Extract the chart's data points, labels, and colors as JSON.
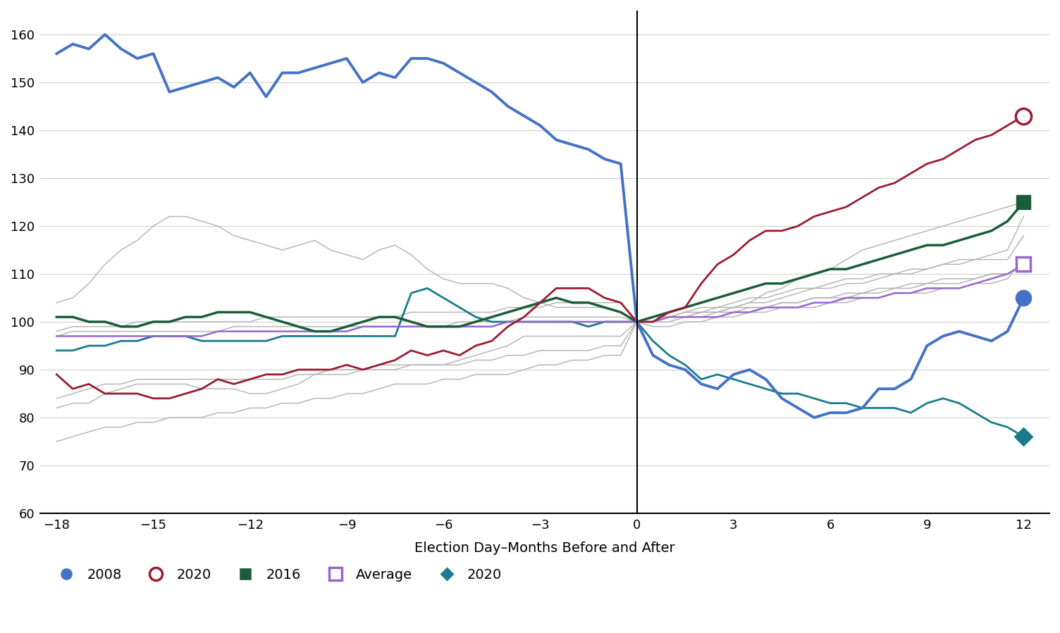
{
  "xlabel": "Election Day–Months Before and After",
  "xlim": [
    -18.5,
    12.8
  ],
  "ylim": [
    60,
    165
  ],
  "xticks": [
    -18,
    -15,
    -12,
    -9,
    -6,
    -3,
    0,
    3,
    6,
    9,
    12
  ],
  "yticks": [
    60,
    70,
    80,
    90,
    100,
    110,
    120,
    130,
    140,
    150,
    160
  ],
  "vline_x": 0,
  "background_color": "#ffffff",
  "grid_color": "#d0d0d0",
  "series_2008_color": "#4472c4",
  "series_2020_crimson_color": "#9b1b30",
  "series_2016_color": "#1a5c38",
  "series_average_color": "#9966cc",
  "series_2020_teal_color": "#1a7b8a",
  "series_gray_color": "#b0b0b0",
  "series_2008": {
    "x": [
      -18,
      -17.5,
      -17,
      -16.5,
      -16,
      -15.5,
      -15,
      -14.5,
      -14,
      -13.5,
      -13,
      -12.5,
      -12,
      -11.5,
      -11,
      -10.5,
      -10,
      -9.5,
      -9,
      -8.5,
      -8,
      -7.5,
      -7,
      -6.5,
      -6,
      -5.5,
      -5,
      -4.5,
      -4,
      -3.5,
      -3,
      -2.5,
      -2,
      -1.5,
      -1,
      -0.5,
      0,
      0.5,
      1,
      1.5,
      2,
      2.5,
      3,
      3.5,
      4,
      4.5,
      5,
      5.5,
      6,
      6.5,
      7,
      7.5,
      8,
      8.5,
      9,
      9.5,
      10,
      10.5,
      11,
      11.5,
      12
    ],
    "y": [
      156,
      158,
      157,
      160,
      157,
      155,
      156,
      148,
      149,
      150,
      151,
      149,
      152,
      147,
      152,
      152,
      153,
      154,
      155,
      150,
      152,
      151,
      155,
      155,
      154,
      152,
      150,
      148,
      145,
      143,
      141,
      138,
      137,
      136,
      134,
      133,
      100,
      93,
      91,
      90,
      87,
      86,
      89,
      90,
      88,
      84,
      82,
      80,
      81,
      81,
      82,
      86,
      86,
      88,
      95,
      97,
      98,
      97,
      96,
      98,
      105
    ]
  },
  "series_2020_crimson": {
    "x": [
      -18,
      -17.5,
      -17,
      -16.5,
      -16,
      -15.5,
      -15,
      -14.5,
      -14,
      -13.5,
      -13,
      -12.5,
      -12,
      -11.5,
      -11,
      -10.5,
      -10,
      -9.5,
      -9,
      -8.5,
      -8,
      -7.5,
      -7,
      -6.5,
      -6,
      -5.5,
      -5,
      -4.5,
      -4,
      -3.5,
      -3,
      -2.5,
      -2,
      -1.5,
      -1,
      -0.5,
      0,
      0.5,
      1,
      1.5,
      2,
      2.5,
      3,
      3.5,
      4,
      4.5,
      5,
      5.5,
      6,
      6.5,
      7,
      7.5,
      8,
      8.5,
      9,
      9.5,
      10,
      10.5,
      11,
      11.5,
      12
    ],
    "y": [
      89,
      86,
      87,
      85,
      85,
      85,
      84,
      84,
      85,
      86,
      88,
      87,
      88,
      89,
      89,
      90,
      90,
      90,
      91,
      90,
      91,
      92,
      94,
      93,
      94,
      93,
      95,
      96,
      99,
      101,
      104,
      107,
      107,
      107,
      105,
      104,
      100,
      100,
      102,
      103,
      108,
      112,
      114,
      117,
      119,
      119,
      120,
      122,
      123,
      124,
      126,
      128,
      129,
      131,
      133,
      134,
      136,
      138,
      139,
      141,
      143
    ]
  },
  "series_2016": {
    "x": [
      -18,
      -17.5,
      -17,
      -16.5,
      -16,
      -15.5,
      -15,
      -14.5,
      -14,
      -13.5,
      -13,
      -12.5,
      -12,
      -11.5,
      -11,
      -10.5,
      -10,
      -9.5,
      -9,
      -8.5,
      -8,
      -7.5,
      -7,
      -6.5,
      -6,
      -5.5,
      -5,
      -4.5,
      -4,
      -3.5,
      -3,
      -2.5,
      -2,
      -1.5,
      -1,
      -0.5,
      0,
      0.5,
      1,
      1.5,
      2,
      2.5,
      3,
      3.5,
      4,
      4.5,
      5,
      5.5,
      6,
      6.5,
      7,
      7.5,
      8,
      8.5,
      9,
      9.5,
      10,
      10.5,
      11,
      11.5,
      12
    ],
    "y": [
      101,
      101,
      100,
      100,
      99,
      99,
      100,
      100,
      101,
      101,
      102,
      102,
      102,
      101,
      100,
      99,
      98,
      98,
      99,
      100,
      101,
      101,
      100,
      99,
      99,
      99,
      100,
      101,
      102,
      103,
      104,
      105,
      104,
      104,
      103,
      102,
      100,
      101,
      102,
      103,
      104,
      105,
      106,
      107,
      108,
      108,
      109,
      110,
      111,
      111,
      112,
      113,
      114,
      115,
      116,
      116,
      117,
      118,
      119,
      121,
      125
    ]
  },
  "series_average": {
    "x": [
      -18,
      -17.5,
      -17,
      -16.5,
      -16,
      -15.5,
      -15,
      -14.5,
      -14,
      -13.5,
      -13,
      -12.5,
      -12,
      -11.5,
      -11,
      -10.5,
      -10,
      -9.5,
      -9,
      -8.5,
      -8,
      -7.5,
      -7,
      -6.5,
      -6,
      -5.5,
      -5,
      -4.5,
      -4,
      -3.5,
      -3,
      -2.5,
      -2,
      -1.5,
      -1,
      -0.5,
      0,
      0.5,
      1,
      1.5,
      2,
      2.5,
      3,
      3.5,
      4,
      4.5,
      5,
      5.5,
      6,
      6.5,
      7,
      7.5,
      8,
      8.5,
      9,
      9.5,
      10,
      10.5,
      11,
      11.5,
      12
    ],
    "y": [
      97,
      97,
      97,
      97,
      97,
      97,
      97,
      97,
      97,
      97,
      98,
      98,
      98,
      98,
      98,
      98,
      98,
      98,
      98,
      99,
      99,
      99,
      99,
      99,
      99,
      99,
      99,
      99,
      100,
      100,
      100,
      100,
      100,
      100,
      100,
      100,
      100,
      100,
      101,
      101,
      101,
      101,
      102,
      102,
      103,
      103,
      103,
      104,
      104,
      105,
      105,
      105,
      106,
      106,
      107,
      107,
      107,
      108,
      109,
      110,
      112
    ]
  },
  "series_2020_teal": {
    "x": [
      -18,
      -17.5,
      -17,
      -16.5,
      -16,
      -15.5,
      -15,
      -14.5,
      -14,
      -13.5,
      -13,
      -12.5,
      -12,
      -11.5,
      -11,
      -10.5,
      -10,
      -9.5,
      -9,
      -8.5,
      -8,
      -7.5,
      -7,
      -6.5,
      -6,
      -5.5,
      -5,
      -4.5,
      -4,
      -3.5,
      -3,
      -2.5,
      -2,
      -1.5,
      -1,
      -0.5,
      0,
      0.5,
      1,
      1.5,
      2,
      2.5,
      3,
      3.5,
      4,
      4.5,
      5,
      5.5,
      6,
      6.5,
      7,
      7.5,
      8,
      8.5,
      9,
      9.5,
      10,
      10.5,
      11,
      11.5,
      12
    ],
    "y": [
      94,
      94,
      95,
      95,
      96,
      96,
      97,
      97,
      97,
      96,
      96,
      96,
      96,
      96,
      97,
      97,
      97,
      97,
      97,
      97,
      97,
      97,
      106,
      107,
      105,
      103,
      101,
      100,
      100,
      100,
      100,
      100,
      100,
      99,
      100,
      100,
      100,
      96,
      93,
      91,
      88,
      89,
      88,
      87,
      86,
      85,
      85,
      84,
      83,
      83,
      82,
      82,
      82,
      81,
      83,
      84,
      83,
      81,
      79,
      78,
      76
    ]
  },
  "gray_series": [
    {
      "x": [
        -18,
        -17.5,
        -17,
        -16.5,
        -16,
        -15.5,
        -15,
        -14.5,
        -14,
        -13.5,
        -13,
        -12.5,
        -12,
        -11.5,
        -11,
        -10.5,
        -10,
        -9.5,
        -9,
        -8.5,
        -8,
        -7.5,
        -7,
        -6.5,
        -6,
        -5.5,
        -5,
        -4.5,
        -4,
        -3.5,
        -3,
        -2.5,
        -2,
        -1.5,
        -1,
        -0.5,
        0,
        0.5,
        1,
        1.5,
        2,
        2.5,
        3,
        3.5,
        4,
        4.5,
        5,
        5.5,
        6,
        6.5,
        7,
        7.5,
        8,
        8.5,
        9,
        9.5,
        10,
        10.5,
        11,
        11.5,
        12
      ],
      "y": [
        104,
        105,
        108,
        112,
        115,
        117,
        120,
        122,
        122,
        121,
        120,
        118,
        117,
        116,
        115,
        116,
        117,
        115,
        114,
        113,
        115,
        116,
        114,
        111,
        109,
        108,
        108,
        108,
        107,
        105,
        104,
        103,
        103,
        103,
        103,
        102,
        100,
        100,
        100,
        101,
        101,
        102,
        103,
        104,
        106,
        107,
        109,
        110,
        111,
        113,
        115,
        116,
        117,
        118,
        119,
        120,
        121,
        122,
        123,
        124,
        125
      ]
    },
    {
      "x": [
        -18,
        -17.5,
        -17,
        -16.5,
        -16,
        -15.5,
        -15,
        -14.5,
        -14,
        -13.5,
        -13,
        -12.5,
        -12,
        -11.5,
        -11,
        -10.5,
        -10,
        -9.5,
        -9,
        -8.5,
        -8,
        -7.5,
        -7,
        -6.5,
        -6,
        -5.5,
        -5,
        -4.5,
        -4,
        -3.5,
        -3,
        -2.5,
        -2,
        -1.5,
        -1,
        -0.5,
        0,
        0.5,
        1,
        1.5,
        2,
        2.5,
        3,
        3.5,
        4,
        4.5,
        5,
        5.5,
        6,
        6.5,
        7,
        7.5,
        8,
        8.5,
        9,
        9.5,
        10,
        10.5,
        11,
        11.5,
        12
      ],
      "y": [
        82,
        83,
        83,
        85,
        86,
        87,
        87,
        87,
        87,
        86,
        86,
        86,
        85,
        85,
        86,
        87,
        89,
        90,
        90,
        90,
        91,
        91,
        91,
        91,
        91,
        92,
        93,
        94,
        95,
        97,
        97,
        97,
        97,
        97,
        97,
        97,
        100,
        100,
        101,
        101,
        102,
        103,
        103,
        104,
        104,
        105,
        106,
        107,
        107,
        108,
        108,
        109,
        110,
        110,
        111,
        112,
        113,
        113,
        114,
        115,
        122
      ]
    },
    {
      "x": [
        -18,
        -17.5,
        -17,
        -16.5,
        -16,
        -15.5,
        -15,
        -14.5,
        -14,
        -13.5,
        -13,
        -12.5,
        -12,
        -11.5,
        -11,
        -10.5,
        -10,
        -9.5,
        -9,
        -8.5,
        -8,
        -7.5,
        -7,
        -6.5,
        -6,
        -5.5,
        -5,
        -4.5,
        -4,
        -3.5,
        -3,
        -2.5,
        -2,
        -1.5,
        -1,
        -0.5,
        0,
        0.5,
        1,
        1.5,
        2,
        2.5,
        3,
        3.5,
        4,
        4.5,
        5,
        5.5,
        6,
        6.5,
        7,
        7.5,
        8,
        8.5,
        9,
        9.5,
        10,
        10.5,
        11,
        11.5,
        12
      ],
      "y": [
        97,
        98,
        98,
        98,
        98,
        98,
        98,
        98,
        98,
        98,
        98,
        99,
        99,
        99,
        99,
        99,
        99,
        99,
        99,
        99,
        99,
        99,
        99,
        99,
        99,
        100,
        100,
        100,
        100,
        101,
        101,
        101,
        101,
        101,
        101,
        101,
        100,
        100,
        101,
        101,
        102,
        102,
        102,
        103,
        103,
        104,
        104,
        105,
        105,
        106,
        106,
        107,
        107,
        108,
        108,
        109,
        109,
        109,
        110,
        110,
        112
      ]
    },
    {
      "x": [
        -18,
        -17.5,
        -17,
        -16.5,
        -16,
        -15.5,
        -15,
        -14.5,
        -14,
        -13.5,
        -13,
        -12.5,
        -12,
        -11.5,
        -11,
        -10.5,
        -10,
        -9.5,
        -9,
        -8.5,
        -8,
        -7.5,
        -7,
        -6.5,
        -6,
        -5.5,
        -5,
        -4.5,
        -4,
        -3.5,
        -3,
        -2.5,
        -2,
        -1.5,
        -1,
        -0.5,
        0,
        0.5,
        1,
        1.5,
        2,
        2.5,
        3,
        3.5,
        4,
        4.5,
        5,
        5.5,
        6,
        6.5,
        7,
        7.5,
        8,
        8.5,
        9,
        9.5,
        10,
        10.5,
        11,
        11.5,
        12
      ],
      "y": [
        84,
        85,
        86,
        87,
        87,
        88,
        88,
        88,
        88,
        88,
        88,
        88,
        88,
        88,
        88,
        89,
        89,
        89,
        89,
        90,
        90,
        90,
        91,
        91,
        91,
        91,
        92,
        92,
        93,
        93,
        94,
        94,
        94,
        94,
        95,
        95,
        100,
        100,
        101,
        102,
        102,
        102,
        103,
        103,
        103,
        104,
        104,
        105,
        105,
        105,
        106,
        106,
        107,
        107,
        108,
        108,
        108,
        109,
        110,
        110,
        112
      ]
    },
    {
      "x": [
        -18,
        -17.5,
        -17,
        -16.5,
        -16,
        -15.5,
        -15,
        -14.5,
        -14,
        -13.5,
        -13,
        -12.5,
        -12,
        -11.5,
        -11,
        -10.5,
        -10,
        -9.5,
        -9,
        -8.5,
        -8,
        -7.5,
        -7,
        -6.5,
        -6,
        -5.5,
        -5,
        -4.5,
        -4,
        -3.5,
        -3,
        -2.5,
        -2,
        -1.5,
        -1,
        -0.5,
        0,
        0.5,
        1,
        1.5,
        2,
        2.5,
        3,
        3.5,
        4,
        4.5,
        5,
        5.5,
        6,
        6.5,
        7,
        7.5,
        8,
        8.5,
        9,
        9.5,
        10,
        10.5,
        11,
        11.5,
        12
      ],
      "y": [
        75,
        76,
        77,
        78,
        78,
        79,
        79,
        80,
        80,
        80,
        81,
        81,
        82,
        82,
        83,
        83,
        84,
        84,
        85,
        85,
        86,
        87,
        87,
        87,
        88,
        88,
        89,
        89,
        89,
        90,
        91,
        91,
        92,
        92,
        93,
        93,
        100,
        101,
        101,
        102,
        103,
        103,
        104,
        105,
        105,
        106,
        107,
        107,
        108,
        109,
        109,
        110,
        110,
        111,
        111,
        112,
        112,
        113,
        113,
        113,
        118
      ]
    },
    {
      "x": [
        -18,
        -17.5,
        -17,
        -16.5,
        -16,
        -15.5,
        -15,
        -14.5,
        -14,
        -13.5,
        -13,
        -12.5,
        -12,
        -11.5,
        -11,
        -10.5,
        -10,
        -9.5,
        -9,
        -8.5,
        -8,
        -7.5,
        -7,
        -6.5,
        -6,
        -5.5,
        -5,
        -4.5,
        -4,
        -3.5,
        -3,
        -2.5,
        -2,
        -1.5,
        -1,
        -0.5,
        0,
        0.5,
        1,
        1.5,
        2,
        2.5,
        3,
        3.5,
        4,
        4.5,
        5,
        5.5,
        6,
        6.5,
        7,
        7.5,
        8,
        8.5,
        9,
        9.5,
        10,
        10.5,
        11,
        11.5,
        12
      ],
      "y": [
        98,
        99,
        99,
        99,
        99,
        100,
        100,
        100,
        100,
        100,
        100,
        100,
        100,
        101,
        101,
        101,
        101,
        101,
        101,
        101,
        101,
        101,
        102,
        102,
        102,
        102,
        102,
        102,
        103,
        103,
        103,
        104,
        104,
        104,
        104,
        104,
        100,
        99,
        99,
        100,
        100,
        101,
        101,
        102,
        102,
        103,
        103,
        103,
        104,
        104,
        105,
        105,
        106,
        106,
        106,
        107,
        107,
        108,
        108,
        109,
        113
      ]
    }
  ]
}
